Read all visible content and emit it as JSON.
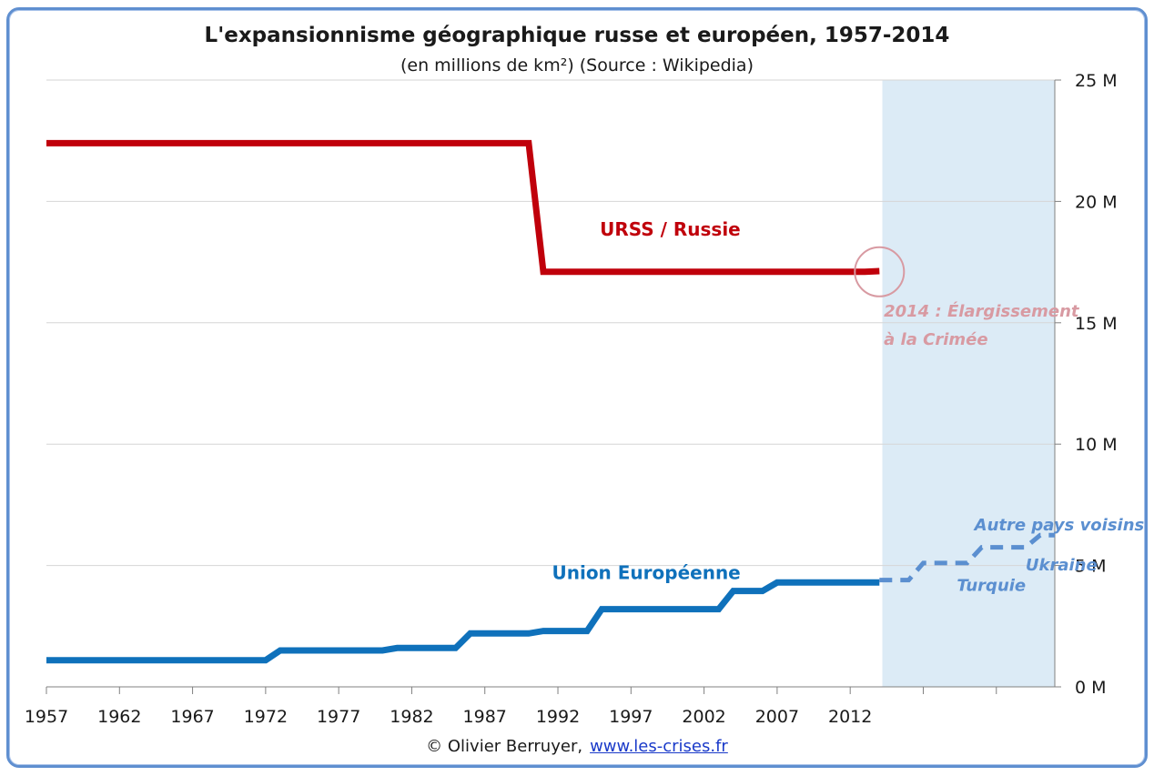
{
  "title": "L'expansionnisme géographique russe et européen, 1957-2014",
  "subtitle": "(en millions de km²) (Source : Wikipedia)",
  "footer": {
    "copyright": "© Olivier Berruyer,",
    "link": "www.les-crises.fr"
  },
  "colors": {
    "russia": "#c0000b",
    "eu": "#0f71bb",
    "projection": "#5b8fd0",
    "highlight": "#dcebf6",
    "annotation": "#d89aa2"
  },
  "chart_data": {
    "type": "line",
    "title": "L'expansionnisme géographique russe et européen, 1957-2014",
    "subtitle": "(en millions de km²) (Source : Wikipedia)",
    "xlim": [
      1957,
      2026
    ],
    "ylim": [
      0,
      25
    ],
    "x_tick_labels": [
      "1957",
      "1962",
      "1967",
      "1972",
      "1977",
      "1982",
      "1987",
      "1992",
      "1997",
      "2002",
      "2007",
      "2012"
    ],
    "y_tick_labels": [
      "0 M",
      "5 M",
      "10 M",
      "15 M",
      "20 M",
      "25 M"
    ],
    "y_ticks": [
      0,
      5,
      10,
      15,
      20,
      25
    ],
    "grid": true,
    "y_axis_side": "right",
    "highlight_range": [
      2014.2,
      2026
    ],
    "series": [
      {
        "name": "URSS / Russie",
        "style": "solid",
        "points": [
          [
            1957,
            22.4
          ],
          [
            1990,
            22.4
          ],
          [
            1991,
            17.1
          ],
          [
            2013,
            17.1
          ],
          [
            2014,
            17.13
          ]
        ]
      },
      {
        "name": "Union Européenne",
        "style": "solid",
        "points": [
          [
            1957,
            1.1
          ],
          [
            1972,
            1.1
          ],
          [
            1973,
            1.5
          ],
          [
            1980,
            1.5
          ],
          [
            1981,
            1.6
          ],
          [
            1985,
            1.6
          ],
          [
            1986,
            2.2
          ],
          [
            1990,
            2.2
          ],
          [
            1991,
            2.3
          ],
          [
            1994,
            2.3
          ],
          [
            1995,
            3.2
          ],
          [
            2003,
            3.2
          ],
          [
            2004,
            3.95
          ],
          [
            2006,
            3.95
          ],
          [
            2007,
            4.3
          ],
          [
            2014,
            4.3
          ]
        ]
      },
      {
        "name": "",
        "style": "dashed",
        "points": [
          [
            2014,
            4.4
          ],
          [
            2016,
            4.4
          ],
          [
            2017,
            5.1
          ],
          [
            2020,
            5.1
          ],
          [
            2021,
            5.75
          ],
          [
            2024,
            5.75
          ],
          [
            2025,
            6.25
          ],
          [
            2026,
            6.25
          ]
        ]
      }
    ],
    "annotations": [
      {
        "text": "URSS / Russie",
        "x": 2004.5,
        "y": 18.6,
        "color": "russia"
      },
      {
        "text": "Union Européenne",
        "x": 2004.5,
        "y": 4.45,
        "color": "eu"
      },
      {
        "text": "2014 : Élargissement",
        "x": 2014.3,
        "y": 15.25,
        "color": "annotation",
        "italic": true
      },
      {
        "text": "à la Crimée",
        "x": 2014.3,
        "y": 14.1,
        "color": "annotation",
        "italic": true
      },
      {
        "text": "Autre pays voisins",
        "x": 2020.5,
        "y": 6.45,
        "color": "projection",
        "italic": true
      },
      {
        "text": "Ukraine",
        "x": 2024.0,
        "y": 4.8,
        "color": "projection",
        "italic": true
      },
      {
        "text": "Turquie",
        "x": 2019.3,
        "y": 3.95,
        "color": "projection",
        "italic": true
      }
    ],
    "circle_marker": {
      "x": 2014,
      "y": 17.1
    }
  }
}
